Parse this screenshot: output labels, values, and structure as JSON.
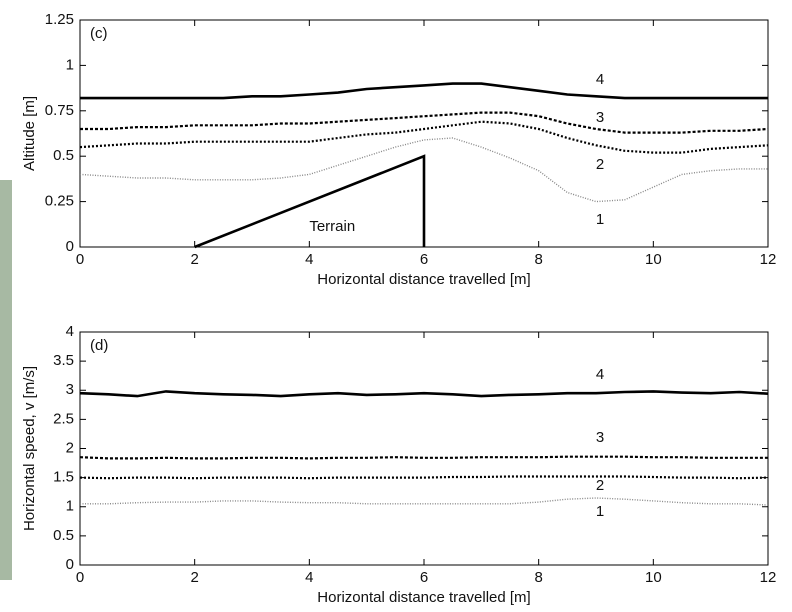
{
  "chart_data": [
    {
      "type": "line",
      "panel_label": "(c)",
      "xlabel": "Horizontal distance travelled [m]",
      "ylabel": "Altitude [m]",
      "xlim": [
        0,
        12
      ],
      "xticks": [
        0,
        2,
        4,
        6,
        8,
        10,
        12
      ],
      "ylim": [
        0,
        1.25
      ],
      "yticks": [
        0,
        0.25,
        0.5,
        0.75,
        1,
        1.25
      ],
      "x": [
        0,
        0.5,
        1,
        1.5,
        2,
        2.5,
        3,
        3.5,
        4,
        4.5,
        5,
        5.5,
        6,
        6.5,
        7,
        7.5,
        8,
        8.5,
        9,
        9.5,
        10,
        10.5,
        11,
        11.5,
        12
      ],
      "series": [
        {
          "name": "4",
          "color": "#000000",
          "linestyle": "solid",
          "values": [
            0.82,
            0.82,
            0.82,
            0.82,
            0.82,
            0.82,
            0.83,
            0.83,
            0.84,
            0.85,
            0.87,
            0.88,
            0.89,
            0.9,
            0.9,
            0.88,
            0.86,
            0.84,
            0.83,
            0.82,
            0.82,
            0.82,
            0.82,
            0.82,
            0.82
          ]
        },
        {
          "name": "3",
          "color": "#000000",
          "linestyle": "dashed",
          "values": [
            0.65,
            0.65,
            0.66,
            0.66,
            0.67,
            0.67,
            0.67,
            0.68,
            0.68,
            0.69,
            0.7,
            0.71,
            0.72,
            0.73,
            0.74,
            0.74,
            0.72,
            0.68,
            0.65,
            0.63,
            0.63,
            0.63,
            0.64,
            0.64,
            0.65
          ]
        },
        {
          "name": "2",
          "color": "#000000",
          "linestyle": "dotted",
          "values": [
            0.55,
            0.56,
            0.57,
            0.57,
            0.58,
            0.58,
            0.58,
            0.58,
            0.58,
            0.6,
            0.62,
            0.63,
            0.65,
            0.67,
            0.69,
            0.68,
            0.65,
            0.6,
            0.56,
            0.53,
            0.52,
            0.52,
            0.54,
            0.55,
            0.56
          ]
        },
        {
          "name": "1",
          "color": "#888888",
          "linestyle": "fine",
          "values": [
            0.4,
            0.39,
            0.38,
            0.38,
            0.37,
            0.37,
            0.37,
            0.38,
            0.4,
            0.45,
            0.5,
            0.55,
            0.59,
            0.6,
            0.55,
            0.49,
            0.42,
            0.3,
            0.25,
            0.26,
            0.33,
            0.4,
            0.42,
            0.43,
            0.43
          ]
        }
      ],
      "terrain": {
        "label": "Terrain",
        "color": "#000000",
        "x": [
          2,
          6,
          6
        ],
        "values": [
          0,
          0.5,
          0
        ]
      }
    },
    {
      "type": "line",
      "panel_label": "(d)",
      "xlabel": "Horizontal distance travelled [m]",
      "ylabel": "Horizontal speed, v [m/s]",
      "xlim": [
        0,
        12
      ],
      "xticks": [
        0,
        2,
        4,
        6,
        8,
        10,
        12
      ],
      "ylim": [
        0,
        4
      ],
      "yticks": [
        0,
        0.5,
        1,
        1.5,
        2,
        2.5,
        3,
        3.5,
        4
      ],
      "x": [
        0,
        0.5,
        1,
        1.5,
        2,
        2.5,
        3,
        3.5,
        4,
        4.5,
        5,
        5.5,
        6,
        6.5,
        7,
        7.5,
        8,
        8.5,
        9,
        9.5,
        10,
        10.5,
        11,
        11.5,
        12
      ],
      "series": [
        {
          "name": "4",
          "color": "#000000",
          "linestyle": "solid",
          "values": [
            2.95,
            2.93,
            2.9,
            2.98,
            2.95,
            2.93,
            2.92,
            2.9,
            2.93,
            2.95,
            2.92,
            2.93,
            2.95,
            2.93,
            2.9,
            2.92,
            2.93,
            2.95,
            2.95,
            2.97,
            2.98,
            2.96,
            2.95,
            2.97,
            2.94
          ]
        },
        {
          "name": "3",
          "color": "#000000",
          "linestyle": "dashed",
          "values": [
            1.85,
            1.83,
            1.83,
            1.84,
            1.83,
            1.83,
            1.84,
            1.84,
            1.83,
            1.84,
            1.84,
            1.85,
            1.84,
            1.84,
            1.85,
            1.85,
            1.85,
            1.86,
            1.86,
            1.86,
            1.85,
            1.85,
            1.84,
            1.84,
            1.84
          ]
        },
        {
          "name": "2",
          "color": "#000000",
          "linestyle": "dotted",
          "values": [
            1.5,
            1.49,
            1.5,
            1.5,
            1.49,
            1.5,
            1.5,
            1.5,
            1.49,
            1.5,
            1.5,
            1.5,
            1.5,
            1.51,
            1.51,
            1.52,
            1.52,
            1.52,
            1.52,
            1.52,
            1.51,
            1.5,
            1.5,
            1.49,
            1.5
          ]
        },
        {
          "name": "1",
          "color": "#888888",
          "linestyle": "fine",
          "values": [
            1.05,
            1.05,
            1.07,
            1.08,
            1.08,
            1.1,
            1.1,
            1.08,
            1.07,
            1.07,
            1.05,
            1.05,
            1.05,
            1.05,
            1.05,
            1.05,
            1.08,
            1.13,
            1.15,
            1.13,
            1.1,
            1.07,
            1.05,
            1.05,
            1.03
          ]
        }
      ]
    }
  ]
}
